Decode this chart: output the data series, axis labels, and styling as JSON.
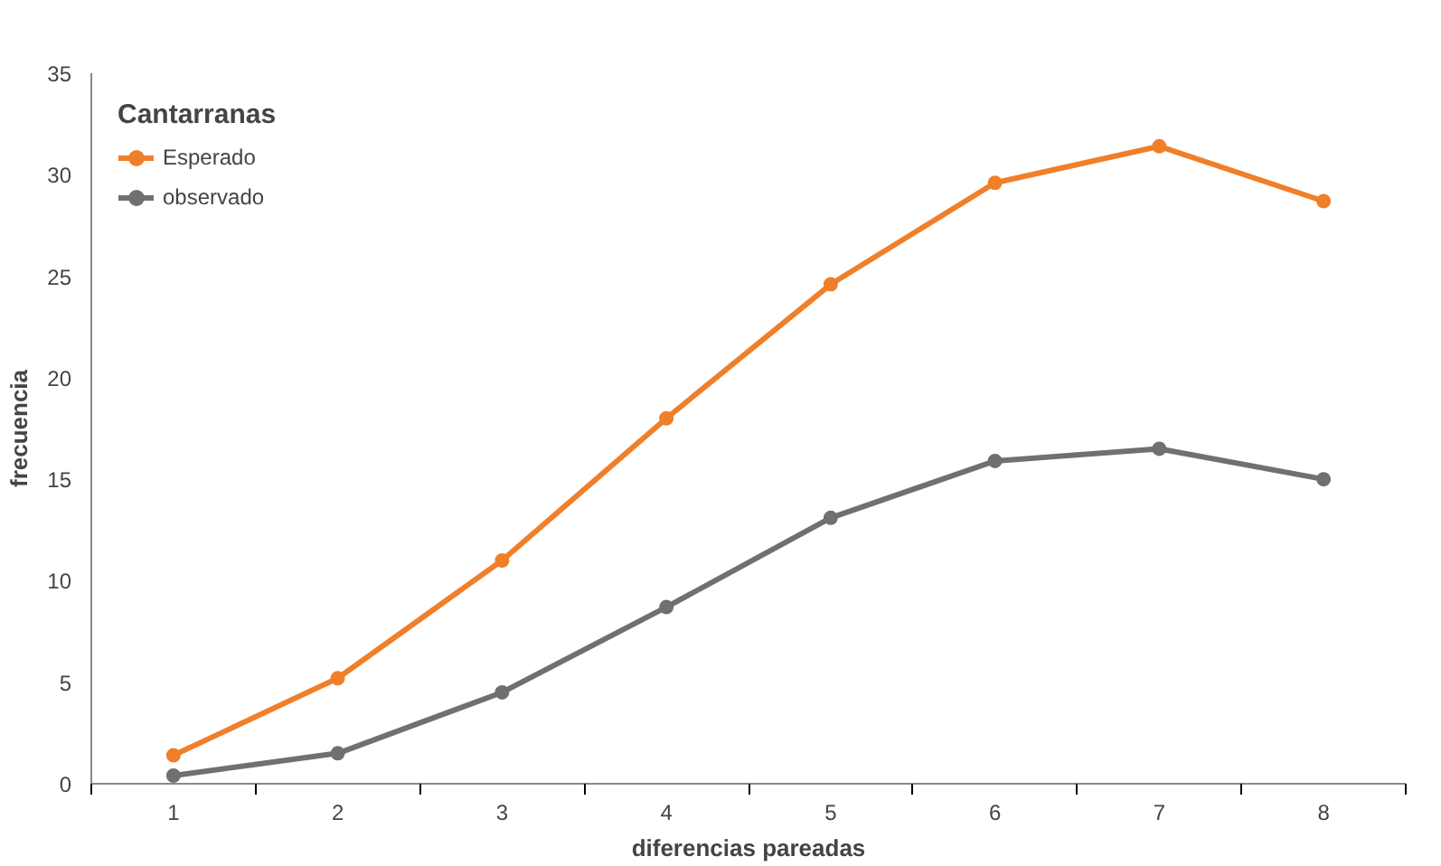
{
  "chart_data": {
    "type": "line",
    "legend_title": "Cantarranas",
    "xlabel": "diferencias pareadas",
    "ylabel": "frecuencia",
    "categories": [
      "1",
      "2",
      "3",
      "4",
      "5",
      "6",
      "7",
      "8"
    ],
    "series": [
      {
        "name": "Esperado",
        "color": "#f07f2a",
        "values": [
          1.4,
          5.2,
          11.0,
          18.0,
          24.6,
          29.6,
          31.4,
          28.7
        ]
      },
      {
        "name": "observado",
        "color": "#707070",
        "values": [
          0.4,
          1.5,
          4.5,
          8.7,
          13.1,
          15.9,
          16.5,
          15.0
        ]
      }
    ],
    "ylim": [
      0,
      35
    ],
    "yticks": [
      0,
      5,
      10,
      15,
      20,
      25,
      30,
      35
    ],
    "grid": false,
    "legend": "top left",
    "marker": "circle",
    "line_style": "solid"
  }
}
